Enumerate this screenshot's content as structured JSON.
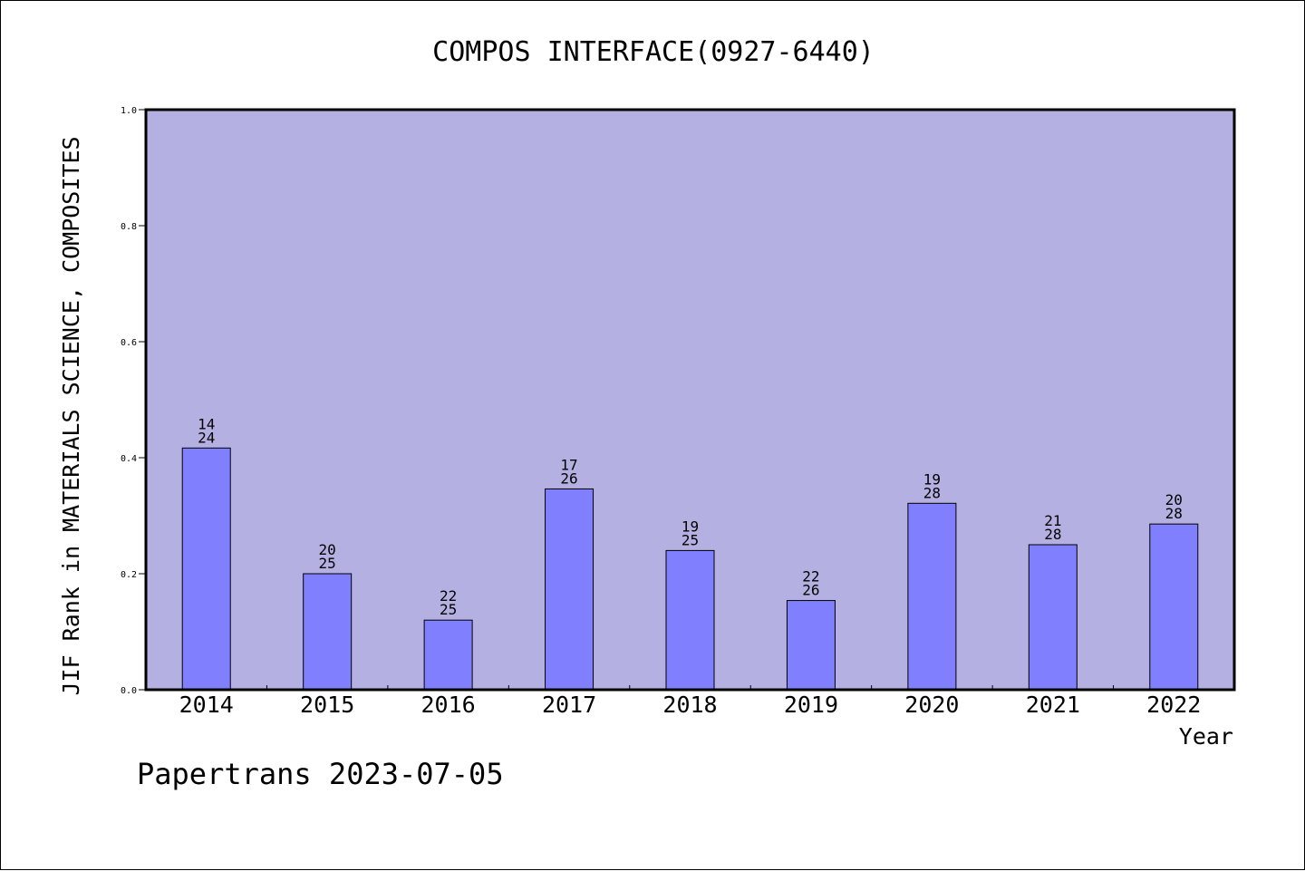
{
  "chart_data": {
    "type": "bar",
    "title": "COMPOS INTERFACE(0927-6440)",
    "ylabel": "JIF Rank in MATERIALS SCIENCE, COMPOSITES",
    "xlabel": "Year",
    "categories": [
      "2014",
      "2015",
      "2016",
      "2017",
      "2018",
      "2019",
      "2020",
      "2021",
      "2022"
    ],
    "values": [
      0.4167,
      0.2,
      0.12,
      0.3462,
      0.24,
      0.1538,
      0.3214,
      0.25,
      0.2857
    ],
    "annotations": [
      {
        "rank": "14",
        "total": "24"
      },
      {
        "rank": "20",
        "total": "25"
      },
      {
        "rank": "22",
        "total": "25"
      },
      {
        "rank": "17",
        "total": "26"
      },
      {
        "rank": "19",
        "total": "25"
      },
      {
        "rank": "22",
        "total": "26"
      },
      {
        "rank": "19",
        "total": "28"
      },
      {
        "rank": "21",
        "total": "28"
      },
      {
        "rank": "20",
        "total": "28"
      }
    ],
    "yticks": [
      "0.0",
      "0.2",
      "0.4",
      "0.6",
      "0.8",
      "1.0"
    ],
    "ylim": [
      0,
      1
    ],
    "grid": false,
    "colors": {
      "plot_bg": "#b5b0e2",
      "bar": "#8080ff",
      "axis": "#000000"
    }
  },
  "footer": {
    "text": "Papertrans 2023-07-05"
  }
}
